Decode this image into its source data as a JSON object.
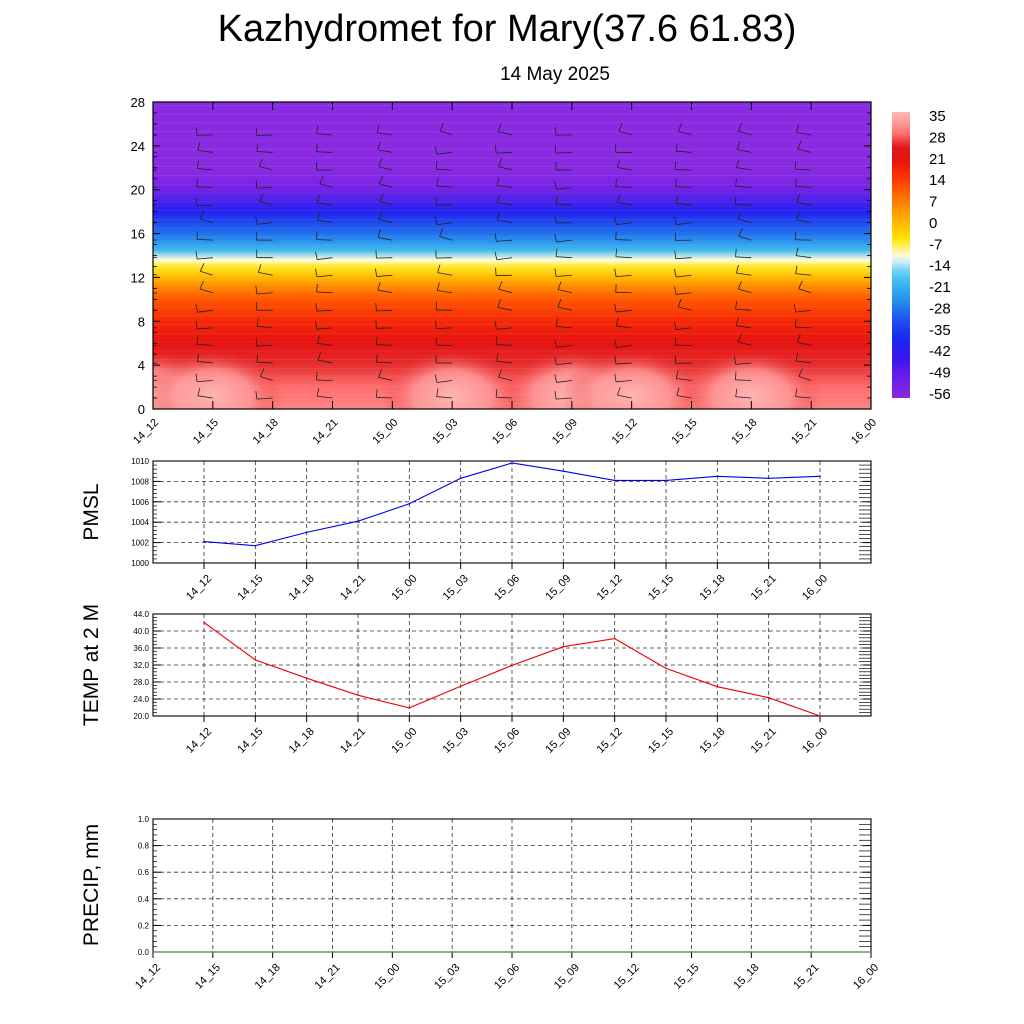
{
  "header": {
    "title": "Kazhydromet for Mary(37.6 61.83)",
    "date": "14 May 2025"
  },
  "chart_data": [
    {
      "type": "heatmap",
      "name": "vertical-cross-section",
      "x_ticks": [
        "14_12",
        "14_15",
        "14_18",
        "14_21",
        "15_00",
        "15_03",
        "15_06",
        "15_09",
        "15_12",
        "15_15",
        "15_18",
        "15_21",
        "16_00"
      ],
      "y_ticks": [
        "0",
        "4",
        "8",
        "12",
        "16",
        "20",
        "24",
        "28"
      ],
      "ylim": [
        0,
        28
      ],
      "colorbar_labels": [
        "35",
        "28",
        "21",
        "14",
        "7",
        "0",
        "-7",
        "-14",
        "-21",
        "-28",
        "-35",
        "-42",
        "-49",
        "-56"
      ],
      "colorbar_range": [
        -63,
        38
      ],
      "level_temperatures": [
        [
          0,
          32
        ],
        [
          2,
          30
        ],
        [
          4,
          27
        ],
        [
          6,
          22
        ],
        [
          8,
          17
        ],
        [
          10,
          11
        ],
        [
          11,
          6
        ],
        [
          12,
          -1
        ],
        [
          13,
          -8
        ],
        [
          13.6,
          -13
        ],
        [
          14.5,
          -22
        ],
        [
          16,
          -32
        ],
        [
          18,
          -44
        ],
        [
          20,
          -58
        ],
        [
          21,
          -61
        ],
        [
          22,
          -63
        ],
        [
          28,
          -63
        ]
      ],
      "surface_warm_peaks": [
        "14_12",
        "14_15",
        "15_03",
        "15_09",
        "15_12",
        "15_18"
      ],
      "wind_barbs": true
    },
    {
      "type": "line",
      "name": "pmsl",
      "ylabel": "PMSL",
      "x": [
        "14_12",
        "14_15",
        "14_18",
        "14_21",
        "15_00",
        "15_03",
        "15_06",
        "15_09",
        "15_12",
        "15_15",
        "15_18",
        "15_21",
        "16_00"
      ],
      "values": [
        1002.1,
        1001.7,
        1003.0,
        1004.1,
        1005.8,
        1008.3,
        1009.8,
        1009.0,
        1008.1,
        1008.1,
        1008.5,
        1008.3,
        1008.5
      ],
      "y_ticks": [
        "1000",
        "1002",
        "1004",
        "1006",
        "1008",
        "1010"
      ],
      "ylim": [
        1000,
        1010
      ],
      "color": "#0000ee",
      "grid": true
    },
    {
      "type": "line",
      "name": "temp-2m",
      "ylabel": "TEMP at 2 M",
      "x": [
        "14_12",
        "14_15",
        "14_18",
        "14_21",
        "15_00",
        "15_03",
        "15_06",
        "15_09",
        "15_12",
        "15_15",
        "15_18",
        "15_21",
        "16_00"
      ],
      "values": [
        42.0,
        33.2,
        28.9,
        24.9,
        21.9,
        27.0,
        31.9,
        36.3,
        38.2,
        31.2,
        26.9,
        24.3,
        20.0
      ],
      "y_ticks": [
        "20.0",
        "24.0",
        "28.0",
        "32.0",
        "36.0",
        "40.0",
        "44.0"
      ],
      "ylim": [
        20,
        44
      ],
      "color": "#ee0000",
      "grid": true
    },
    {
      "type": "line",
      "name": "precip",
      "ylabel": "PRECIP, mm",
      "x": [
        "14_12",
        "14_15",
        "14_18",
        "14_21",
        "15_00",
        "15_03",
        "15_06",
        "15_09",
        "15_12",
        "15_15",
        "15_18",
        "15_21",
        "16_00"
      ],
      "values": [
        0,
        0,
        0,
        0,
        0,
        0,
        0,
        0,
        0,
        0,
        0,
        0,
        0
      ],
      "y_ticks": [
        "0.0",
        "0.2",
        "0.4",
        "0.6",
        "0.8",
        "1.0"
      ],
      "ylim": [
        0,
        1
      ],
      "color": "#2e7d32",
      "grid": true
    }
  ]
}
